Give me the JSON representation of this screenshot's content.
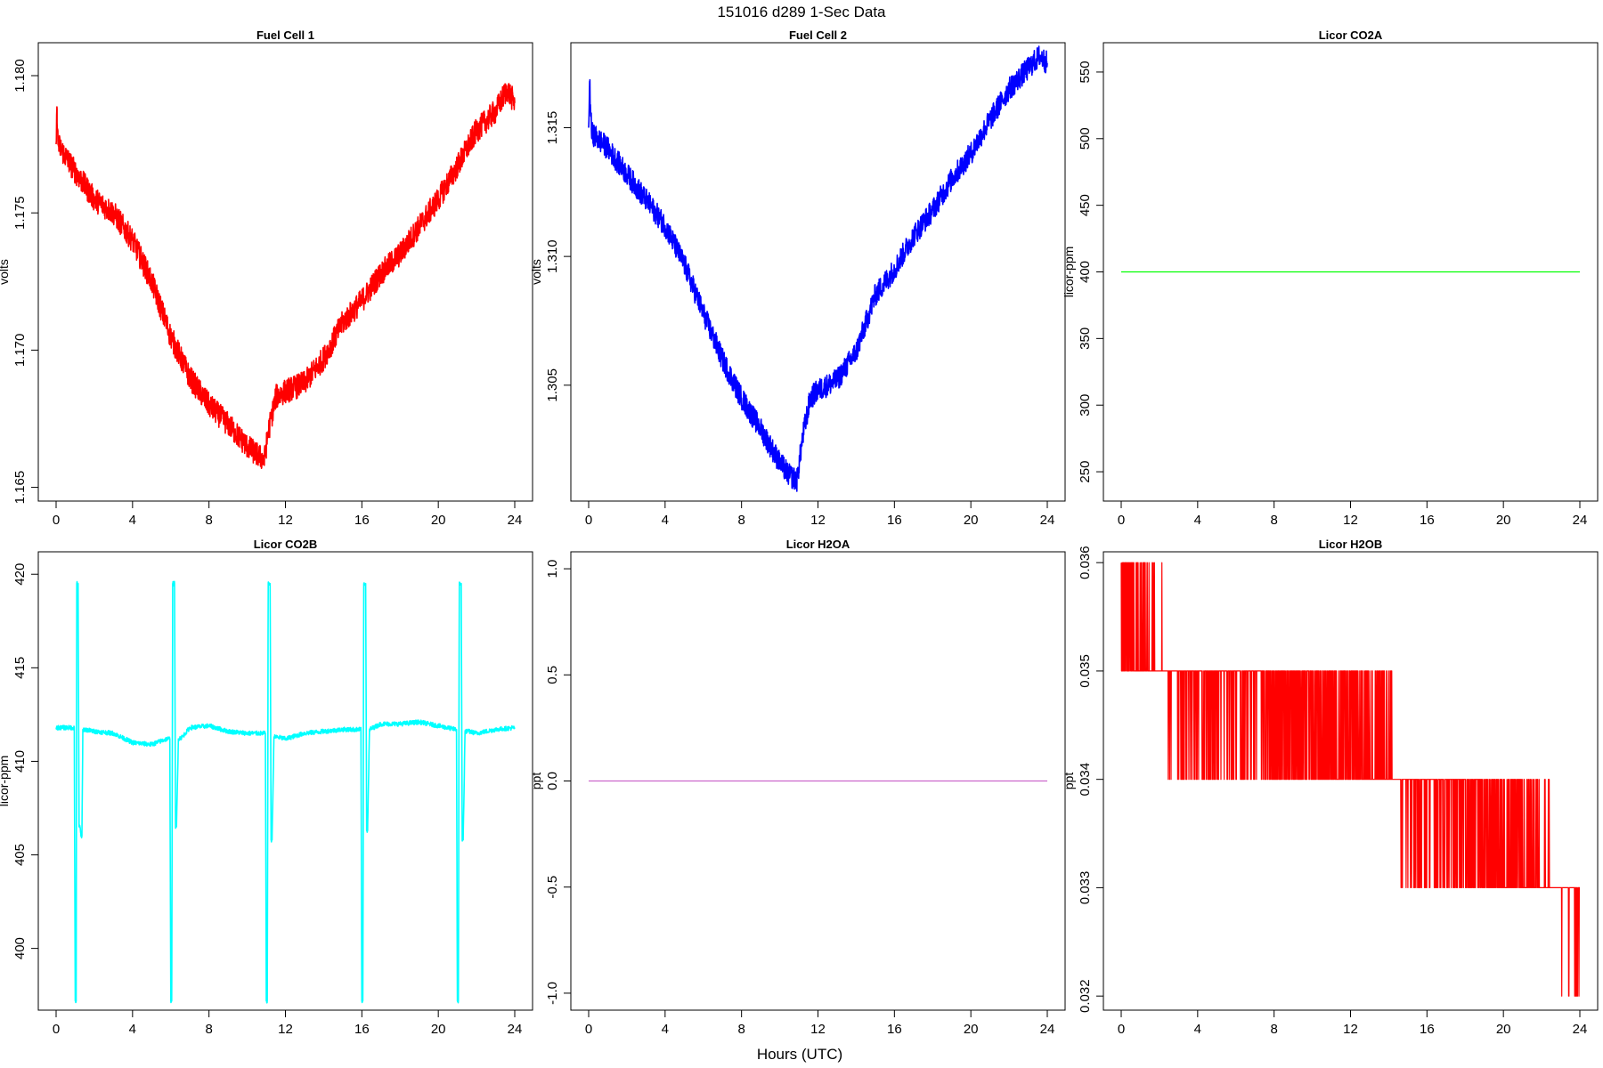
{
  "figure": {
    "title": "151016   d289   1-Sec Data",
    "xlabel": "Hours (UTC)"
  },
  "chart_data": [
    {
      "type": "line",
      "title": "Fuel Cell 1",
      "ylabel": "volts",
      "xlim": [
        0,
        24
      ],
      "xticks": [
        0,
        4,
        8,
        12,
        16,
        20,
        24
      ],
      "ylim": [
        1.1645,
        1.1812
      ],
      "yticks": [
        1.165,
        1.17,
        1.175,
        1.18
      ],
      "ytick_decimals": 3,
      "color": "#ff0000",
      "noise": 0.00045,
      "series": [
        {
          "x": [
            0,
            0.05,
            0.1,
            1,
            2,
            3,
            4,
            5,
            6,
            7,
            8,
            9,
            10,
            10.5,
            10.9,
            11.1,
            11.5,
            12,
            13,
            14,
            15,
            16,
            17,
            18,
            19,
            20,
            21,
            22,
            23,
            23.6,
            24
          ],
          "y": [
            1.1775,
            1.1788,
            1.1775,
            1.1765,
            1.1755,
            1.175,
            1.174,
            1.1725,
            1.1705,
            1.169,
            1.168,
            1.1673,
            1.1665,
            1.1662,
            1.166,
            1.167,
            1.1683,
            1.1685,
            1.1688,
            1.1697,
            1.171,
            1.1718,
            1.1728,
            1.1735,
            1.1745,
            1.1755,
            1.1767,
            1.178,
            1.1787,
            1.1795,
            1.179
          ]
        }
      ]
    },
    {
      "type": "line",
      "title": "Fuel Cell 2",
      "ylabel": "volts",
      "xlim": [
        0,
        24
      ],
      "xticks": [
        0,
        4,
        8,
        12,
        16,
        20,
        24
      ],
      "ylim": [
        1.3005,
        1.3183
      ],
      "yticks": [
        1.305,
        1.31,
        1.315
      ],
      "ytick_decimals": 3,
      "color": "#0000ff",
      "noise": 0.00045,
      "series": [
        {
          "x": [
            0,
            0.05,
            0.15,
            1,
            2,
            3,
            4,
            5,
            6,
            7,
            8,
            9,
            10,
            10.5,
            10.9,
            11.2,
            11.6,
            12,
            13,
            14,
            15,
            16,
            17,
            18,
            19,
            20,
            21,
            22,
            23,
            23.6,
            24
          ],
          "y": [
            1.315,
            1.3168,
            1.3148,
            1.3142,
            1.3132,
            1.3122,
            1.3112,
            1.3097,
            1.3078,
            1.306,
            1.3045,
            1.3033,
            1.302,
            1.3015,
            1.3013,
            1.303,
            1.3045,
            1.3048,
            1.3052,
            1.3063,
            1.3085,
            1.3095,
            1.3108,
            1.3118,
            1.313,
            1.314,
            1.3153,
            1.3165,
            1.3173,
            1.3178,
            1.3175
          ]
        }
      ]
    },
    {
      "type": "line",
      "title": "Licor CO2A",
      "ylabel": "licor-ppm",
      "xlim": [
        0,
        24
      ],
      "xticks": [
        0,
        4,
        8,
        12,
        16,
        20,
        24
      ],
      "ylim": [
        228,
        572
      ],
      "yticks": [
        250,
        300,
        350,
        400,
        450,
        500,
        550
      ],
      "ytick_decimals": 0,
      "color": "#00ff00",
      "noise": 0,
      "series": [
        {
          "x": [
            0,
            24
          ],
          "y": [
            400,
            400
          ]
        }
      ]
    },
    {
      "type": "line",
      "title": "Licor CO2B",
      "ylabel": "licor-ppm",
      "xlim": [
        0,
        24
      ],
      "xticks": [
        0,
        4,
        8,
        12,
        16,
        20,
        24
      ],
      "ylim": [
        396.7,
        421.2
      ],
      "yticks": [
        400,
        405,
        410,
        415,
        420
      ],
      "ytick_decimals": 0,
      "color": "#00ffff",
      "noise": 0.12,
      "series": [
        {
          "x": [
            0,
            0.5,
            0.95,
            1.0,
            1.05,
            1.08,
            1.15,
            1.2,
            1.25,
            1.3,
            1.35,
            1.4,
            1.5,
            2,
            3,
            4,
            5,
            5.8,
            5.95,
            6.0,
            6.05,
            6.1,
            6.2,
            6.25,
            6.3,
            6.4,
            6.6,
            7,
            8,
            9,
            10,
            10.5,
            10.95,
            11.0,
            11.05,
            11.1,
            11.2,
            11.25,
            11.3,
            11.4,
            11.6,
            12,
            13,
            14,
            15,
            15.9,
            15.95,
            16.0,
            16.05,
            16.1,
            16.2,
            16.25,
            16.3,
            16.4,
            16.6,
            17,
            18,
            19,
            20,
            20.9,
            20.95,
            21.0,
            21.05,
            21.1,
            21.2,
            21.25,
            21.3,
            21.4,
            21.6,
            22,
            23,
            24
          ],
          "y": [
            411.8,
            411.8,
            411.8,
            397.2,
            397.2,
            419.5,
            419.5,
            406.5,
            406.5,
            406.0,
            406.0,
            411.7,
            411.7,
            411.6,
            411.5,
            411.0,
            410.9,
            411.2,
            411.2,
            397.2,
            397.2,
            419.5,
            419.5,
            406.5,
            406.5,
            411.2,
            411.3,
            411.8,
            411.9,
            411.6,
            411.5,
            411.5,
            411.5,
            397.2,
            397.2,
            419.5,
            419.5,
            405.8,
            405.8,
            411.3,
            411.3,
            411.2,
            411.5,
            411.6,
            411.7,
            411.7,
            411.7,
            397.2,
            397.2,
            419.5,
            419.5,
            406.3,
            406.3,
            411.7,
            411.8,
            412.0,
            412.0,
            412.1,
            411.9,
            411.7,
            411.7,
            397.2,
            397.2,
            419.5,
            419.5,
            405.8,
            405.8,
            411.6,
            411.6,
            411.5,
            411.7,
            411.8
          ]
        }
      ]
    },
    {
      "type": "line",
      "title": "Licor H2OA",
      "ylabel": "ppt",
      "xlim": [
        0,
        24
      ],
      "xticks": [
        0,
        4,
        8,
        12,
        16,
        20,
        24
      ],
      "ylim": [
        -1.08,
        1.08
      ],
      "yticks": [
        -1.0,
        -0.5,
        0.0,
        0.5,
        1.0
      ],
      "ytick_decimals": 1,
      "color": "#cc66cc",
      "noise": 0,
      "series": [
        {
          "x": [
            0,
            24
          ],
          "y": [
            0,
            0
          ]
        }
      ]
    },
    {
      "type": "line",
      "title": "Licor H2OB",
      "ylabel": "ppt",
      "xlim": [
        0,
        24
      ],
      "xticks": [
        0,
        4,
        8,
        12,
        16,
        20,
        24
      ],
      "ylim": [
        0.03187,
        0.0361
      ],
      "yticks": [
        0.032,
        0.033,
        0.034,
        0.035,
        0.036
      ],
      "ytick_decimals": 3,
      "color": "#ff0000",
      "noise": 0,
      "series": [
        {
          "x": [
            0,
            1.5,
            3,
            6,
            8,
            10,
            12,
            14,
            14.8,
            16,
            18,
            20,
            22,
            23.5,
            24
          ],
          "y": [
            0.0355,
            0.0352,
            0.0348,
            0.0347,
            0.0346,
            0.0345,
            0.0344,
            0.0343,
            0.0338,
            0.0337,
            0.0336,
            0.0334,
            0.0331,
            0.0329,
            0.0328
          ]
        }
      ]
    }
  ]
}
